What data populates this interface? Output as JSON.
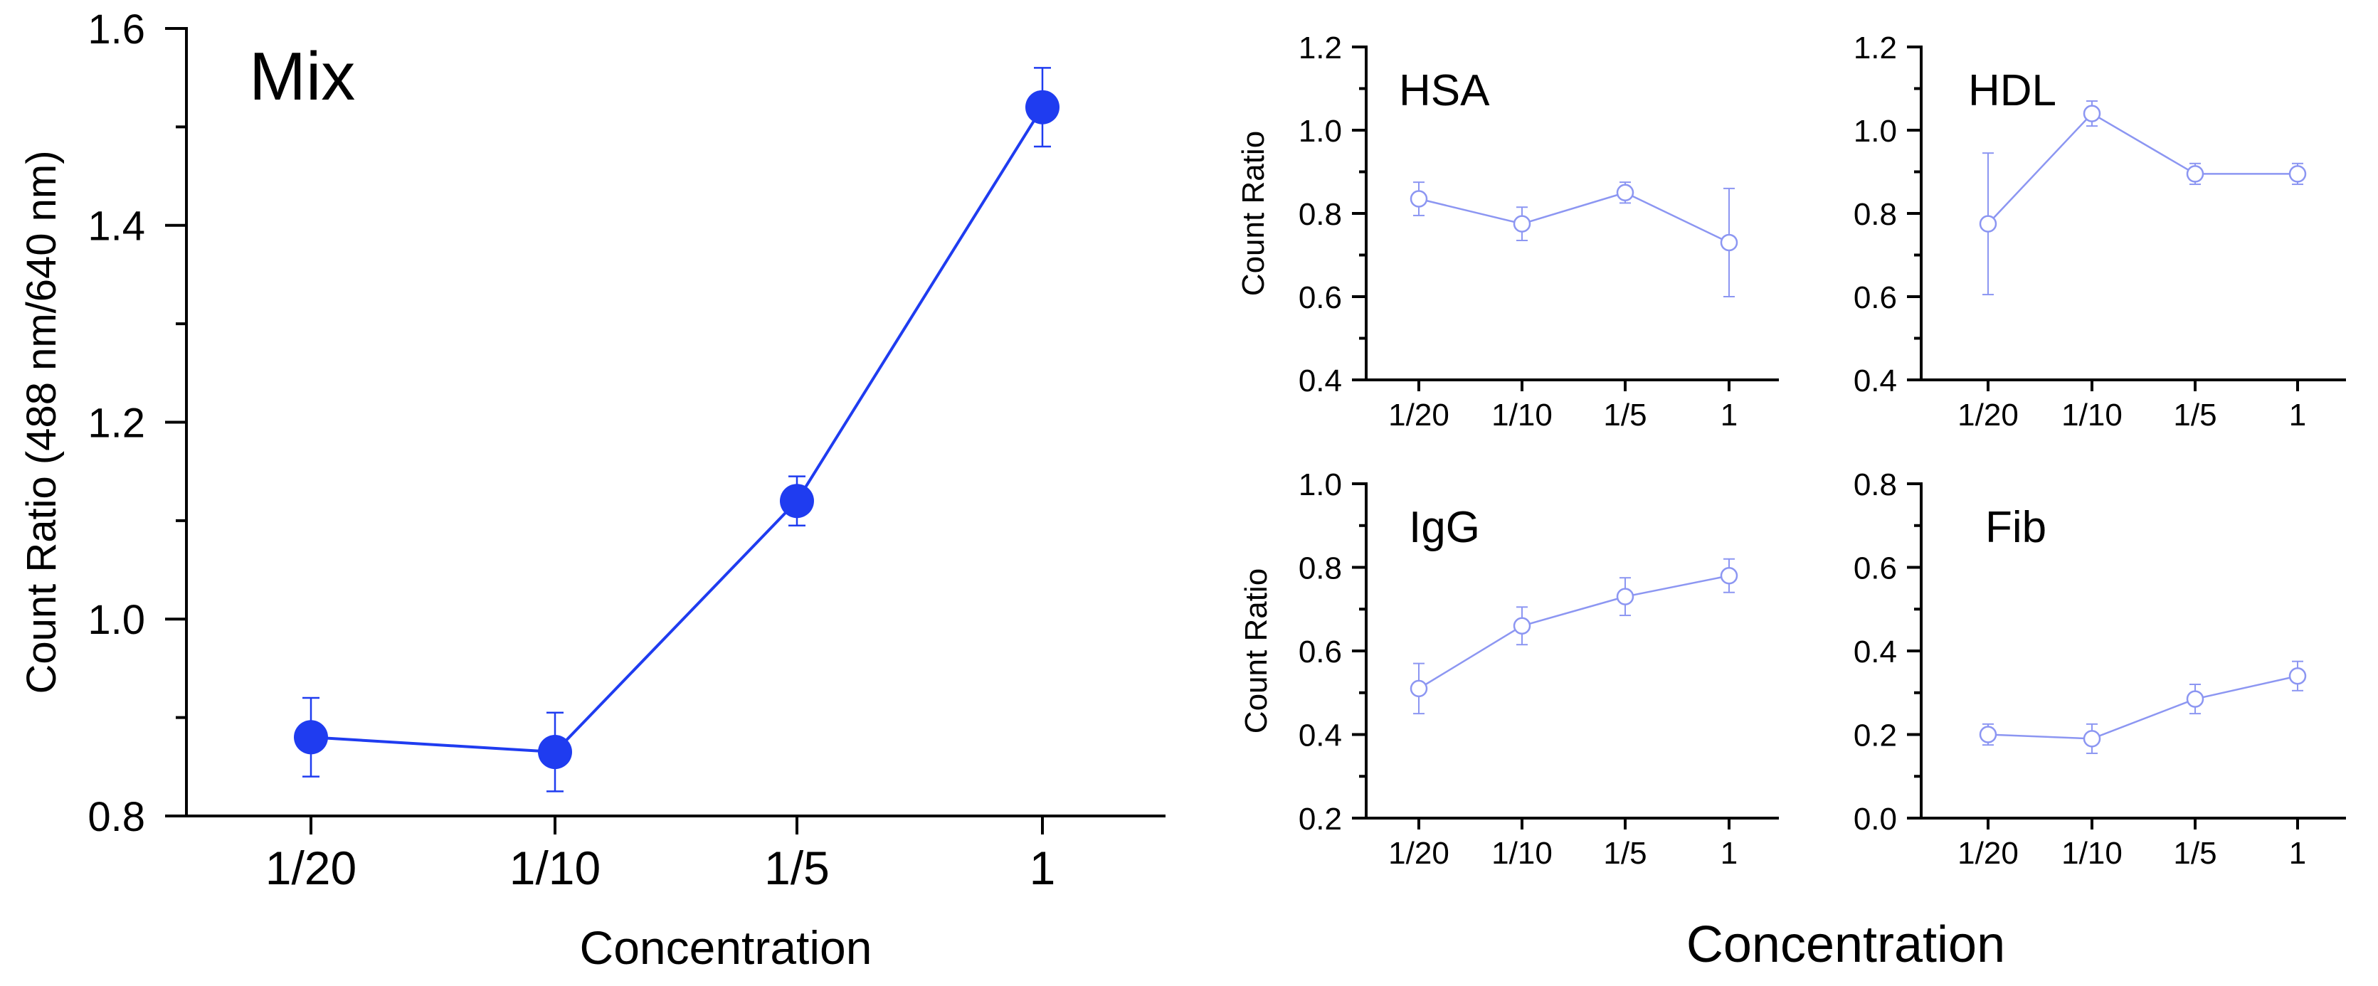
{
  "colors": {
    "main_series": "#1f3cf0",
    "small_series": "#8c96f2",
    "axis": "#000000",
    "background": "#ffffff"
  },
  "shared_xlabel": "Concentration",
  "chart_data": [
    {
      "id": "mix",
      "type": "line",
      "title": "Mix",
      "xlabel": "Concentration",
      "ylabel": "Count Ratio (488 nm/640 nm)",
      "categories": [
        "1/20",
        "1/10",
        "1/5",
        "1"
      ],
      "ylim": [
        0.8,
        1.6
      ],
      "yticks": [
        0.8,
        1.0,
        1.2,
        1.4,
        1.6
      ],
      "ytick_labels": [
        "0.8",
        "1.0",
        "1.2",
        "1.4",
        "1.6"
      ],
      "series": [
        {
          "name": "Mix",
          "marker": "filled-circle",
          "values": [
            0.88,
            0.865,
            1.12,
            1.52
          ],
          "errors": [
            0.04,
            0.04,
            0.025,
            0.04
          ]
        }
      ]
    },
    {
      "id": "hsa",
      "type": "line",
      "title": "HSA",
      "xlabel": "",
      "ylabel": "Count Ratio",
      "categories": [
        "1/20",
        "1/10",
        "1/5",
        "1"
      ],
      "ylim": [
        0.4,
        1.2
      ],
      "yticks": [
        0.4,
        0.6,
        0.8,
        1.0,
        1.2
      ],
      "ytick_labels": [
        "0.4",
        "0.6",
        "0.8",
        "1.0",
        "1.2"
      ],
      "series": [
        {
          "name": "HSA",
          "marker": "open-circle",
          "values": [
            0.835,
            0.775,
            0.85,
            0.73
          ],
          "errors": [
            0.04,
            0.04,
            0.025,
            0.13
          ]
        }
      ]
    },
    {
      "id": "hdl",
      "type": "line",
      "title": "HDL",
      "xlabel": "",
      "ylabel": "",
      "categories": [
        "1/20",
        "1/10",
        "1/5",
        "1"
      ],
      "ylim": [
        0.4,
        1.2
      ],
      "yticks": [
        0.4,
        0.6,
        0.8,
        1.0,
        1.2
      ],
      "ytick_labels": [
        "0.4",
        "0.6",
        "0.8",
        "1.0",
        "1.2"
      ],
      "series": [
        {
          "name": "HDL",
          "marker": "open-circle",
          "values": [
            0.775,
            1.04,
            0.895,
            0.895
          ],
          "errors": [
            0.17,
            0.03,
            0.025,
            0.025
          ]
        }
      ]
    },
    {
      "id": "igg",
      "type": "line",
      "title": "IgG",
      "xlabel": "",
      "ylabel": "Count Ratio",
      "categories": [
        "1/20",
        "1/10",
        "1/5",
        "1"
      ],
      "ylim": [
        0.2,
        1.0
      ],
      "yticks": [
        0.2,
        0.4,
        0.6,
        0.8,
        1.0
      ],
      "ytick_labels": [
        "0.2",
        "0.4",
        "0.6",
        "0.8",
        "1.0"
      ],
      "series": [
        {
          "name": "IgG",
          "marker": "open-circle",
          "values": [
            0.51,
            0.66,
            0.73,
            0.78
          ],
          "errors": [
            0.06,
            0.045,
            0.045,
            0.04
          ]
        }
      ]
    },
    {
      "id": "fib",
      "type": "line",
      "title": "Fib",
      "xlabel": "",
      "ylabel": "",
      "categories": [
        "1/20",
        "1/10",
        "1/5",
        "1"
      ],
      "ylim": [
        0.0,
        0.8
      ],
      "yticks": [
        0.0,
        0.2,
        0.4,
        0.6,
        0.8
      ],
      "ytick_labels": [
        "0.0",
        "0.2",
        "0.4",
        "0.6",
        "0.8"
      ],
      "series": [
        {
          "name": "Fib",
          "marker": "open-circle",
          "values": [
            0.2,
            0.19,
            0.285,
            0.34
          ],
          "errors": [
            0.025,
            0.035,
            0.035,
            0.035
          ]
        }
      ]
    }
  ]
}
